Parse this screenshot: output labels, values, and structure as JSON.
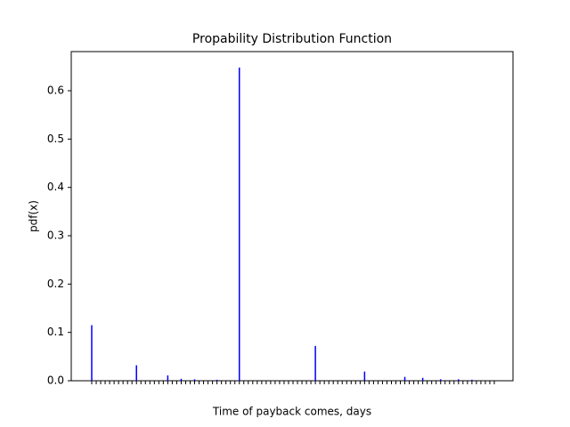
{
  "chart_data": {
    "type": "bar",
    "title": "Propability Distribution Function",
    "xlabel": "Time of payback comes, days",
    "ylabel": "pdf(x)",
    "color": "#0000ff",
    "categories": [
      null,
      null,
      null,
      null,
      null,
      null,
      null,
      null,
      null,
      null,
      null,
      null,
      null,
      null,
      null,
      null,
      null,
      null,
      null,
      null,
      null,
      null,
      null,
      null,
      null,
      null,
      null,
      null,
      null,
      null,
      null,
      null,
      null,
      null,
      null,
      null,
      null,
      null,
      null,
      null,
      null,
      null,
      null,
      null,
      null,
      null,
      null,
      null,
      null,
      null,
      null,
      null,
      null,
      null,
      null,
      null,
      null,
      null,
      null,
      null,
      null,
      null,
      null,
      null,
      null,
      null,
      null,
      null,
      null,
      null,
      null,
      null,
      null,
      null,
      null,
      null,
      null,
      null,
      null,
      null,
      null,
      null,
      null,
      null,
      null,
      null,
      null,
      null,
      null,
      null,
      null
    ],
    "values": [
      0.115,
      0,
      0,
      0,
      0,
      0,
      0,
      0,
      0,
      0,
      0.032,
      0,
      0,
      0,
      0,
      0,
      0,
      0.011,
      0,
      0,
      0.004,
      0,
      0,
      0.003,
      0,
      0,
      0,
      0,
      0.002,
      0,
      0,
      0,
      0,
      0.648,
      0,
      0,
      0,
      0,
      0,
      0,
      0,
      0,
      0,
      0,
      0,
      0,
      0,
      0,
      0,
      0,
      0.072,
      0,
      0,
      0,
      0,
      0,
      0,
      0,
      0,
      0,
      0,
      0.019,
      0,
      0,
      0,
      0,
      0,
      0,
      0,
      0,
      0.008,
      0,
      0,
      0,
      0.006,
      0,
      0,
      0,
      0.003,
      0,
      0,
      0,
      0.003,
      0,
      0,
      0.002,
      0,
      0,
      0,
      0,
      0
    ],
    "ylim": [
      0,
      0.681
    ],
    "yticks": [
      {
        "value": 0,
        "label": "0.0"
      },
      0.1,
      0.2,
      0.3,
      0.4,
      0.5,
      0.6
    ]
  }
}
